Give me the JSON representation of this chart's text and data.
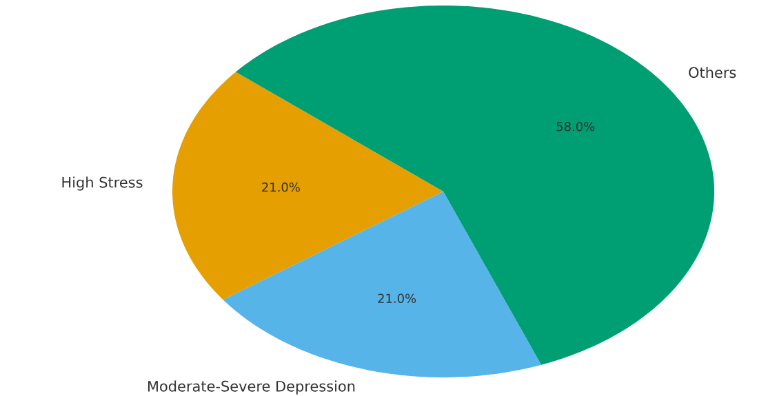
{
  "chart_data": {
    "type": "pie",
    "categories": [
      "High Stress",
      "Moderate-Severe Depression",
      "Others"
    ],
    "values": [
      21,
      21,
      58
    ],
    "colors": [
      "#e69f00",
      "#56b4e9",
      "#009e73"
    ],
    "value_labels": [
      "21.0%",
      "21.0%",
      "58.0%"
    ]
  }
}
